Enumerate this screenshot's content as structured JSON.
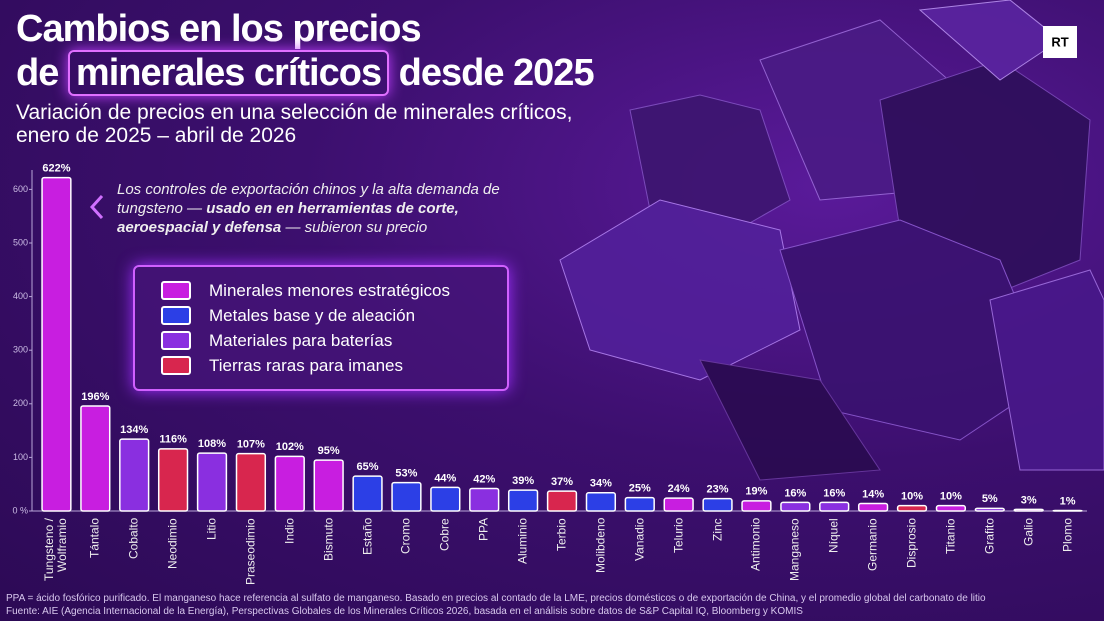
{
  "chart_data": {
    "type": "bar",
    "title": {
      "line1": "Cambios en los precios",
      "prefix": "de",
      "highlight": "minerales críticos",
      "suffix": "desde 2025"
    },
    "subtitle": "Variación de precios en una selección de minerales críticos, enero de 2025 – abril de 2026",
    "annotation": {
      "regular": "Los controles de exportación chinos y la alta demanda de tungsteno —",
      "bold": "usado en en herramientas de corte, aeroespacial y defensa",
      "end": "— subieron su precio"
    },
    "logo": "RT",
    "categories": [
      "Tungsteno / Wolframio",
      "Tántalo",
      "Cobalto",
      "Neodimio",
      "Litio",
      "Praseodimio",
      "Indio",
      "Bismuto",
      "Estaño",
      "Cromo",
      "Cobre",
      "PPA",
      "Aluminio",
      "Terbio",
      "Molibdeno",
      "Vanadio",
      "Telurio",
      "Zinc",
      "Antimonio",
      "Manganeso",
      "Níquel",
      "Germanio",
      "Disprosio",
      "Titanio",
      "Grafito",
      "Galio",
      "Plomo"
    ],
    "series": [
      {
        "name": "Minerales menores estratégicos",
        "color": "#c81ee0",
        "values": [
          622,
          196,
          null,
          null,
          null,
          null,
          102,
          95,
          null,
          null,
          null,
          null,
          null,
          null,
          null,
          null,
          24,
          null,
          19,
          null,
          null,
          14,
          null,
          10,
          null,
          3,
          null
        ],
        "value_labels": [
          "622%",
          "196%",
          null,
          null,
          null,
          null,
          "102%",
          "95%",
          null,
          null,
          null,
          null,
          null,
          null,
          null,
          null,
          "24%",
          null,
          "19%",
          null,
          null,
          "14%",
          null,
          "10%",
          null,
          "3%",
          null
        ]
      },
      {
        "name": "Metales base y de aleación",
        "color": "#2c3fe6",
        "values": [
          null,
          null,
          null,
          null,
          null,
          null,
          null,
          null,
          65,
          53,
          44,
          null,
          39,
          null,
          34,
          25,
          null,
          23,
          null,
          null,
          null,
          null,
          null,
          null,
          null,
          null,
          1
        ],
        "value_labels": [
          null,
          null,
          null,
          null,
          null,
          null,
          null,
          null,
          "65%",
          "53%",
          "44%",
          null,
          "39%",
          null,
          "34%",
          "25%",
          null,
          "23%",
          null,
          null,
          null,
          null,
          null,
          null,
          null,
          null,
          "1%"
        ]
      },
      {
        "name": "Materiales para baterías",
        "color": "#8a2fe0",
        "values": [
          null,
          null,
          134,
          null,
          108,
          null,
          null,
          null,
          null,
          null,
          null,
          42,
          null,
          null,
          null,
          null,
          null,
          null,
          null,
          16,
          16,
          null,
          null,
          null,
          5,
          null,
          null
        ],
        "value_labels": [
          null,
          null,
          "134%",
          null,
          "108%",
          null,
          null,
          null,
          null,
          null,
          null,
          "42%",
          null,
          null,
          null,
          null,
          null,
          null,
          null,
          "16%",
          "16%",
          null,
          null,
          null,
          "5%",
          null,
          null
        ]
      },
      {
        "name": "Tierras raras para imanes",
        "color": "#d8264e",
        "values": [
          null,
          null,
          null,
          116,
          null,
          107,
          null,
          null,
          null,
          null,
          null,
          null,
          null,
          37,
          null,
          null,
          null,
          null,
          null,
          null,
          null,
          null,
          10,
          null,
          null,
          null,
          null
        ],
        "value_labels": [
          null,
          null,
          null,
          "116%",
          null,
          "107%",
          null,
          null,
          null,
          null,
          null,
          null,
          null,
          "37%",
          null,
          null,
          null,
          null,
          null,
          null,
          null,
          null,
          "10%",
          null,
          null,
          null,
          null
        ]
      }
    ],
    "ylim": [
      0,
      625
    ],
    "yticks": [
      {
        "value": 0,
        "label": "0 %"
      },
      100,
      200,
      300,
      400,
      500,
      600
    ],
    "notes": [
      "PPA = ácido fosfórico purificado. El manganeso hace referencia al sulfato de manganeso. Basado en precios al contado de la LME, precios domésticos o de exportación de China, y el promedio global del carbonato de litio",
      "Fuente: AIE (Agencia Internacional de la Energía), Perspectivas Globales de los Minerales Críticos 2026, basada en el análisis sobre datos de S&P Capital IQ, Bloomberg y KOMIS"
    ]
  }
}
